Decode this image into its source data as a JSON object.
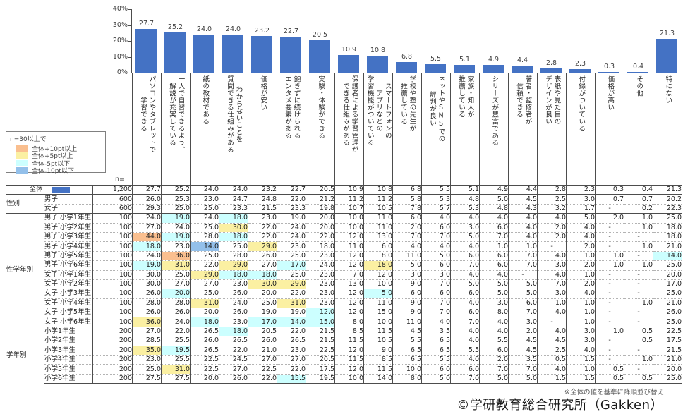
{
  "chart_data": {
    "type": "bar",
    "title": "",
    "unit": "%",
    "bar_color": "#4472C4",
    "grid": false,
    "legend_position": "none",
    "ylim": [
      0,
      40
    ],
    "yticks": [
      "40%",
      "30%",
      "20%",
      "10%",
      "0%"
    ],
    "categories": [
      "パソコンやタブレットで\n学習できる",
      "一人で自習できるよう、\n解説が充実している",
      "紙の教材である",
      "わからないことを\n質問できる仕組みがある",
      "価格が安い",
      "飽きずに続けられる\nエンタメ要素がある",
      "実験・体験ができる",
      "保護者による学習管理が\nできる仕組みがある",
      "スマートフォンの\nアプリなどの\n学習機能がついている",
      "学校や塾の先生が\n推薦している",
      "ネットやSNSでの\n評判が良い",
      "家族・知人が\n推薦している",
      "シリーズが豊富である",
      "著者・監修者が\n信頼できる",
      "表紙や見た目の\nデザインが良い",
      "付録がついている",
      "価格が高い",
      "その他",
      "特にない"
    ],
    "values": [
      27.7,
      25.2,
      24.0,
      24.0,
      23.2,
      22.7,
      20.5,
      10.9,
      10.8,
      6.8,
      5.5,
      5.1,
      4.9,
      4.4,
      2.8,
      2.3,
      0.3,
      0.4,
      21.3
    ]
  },
  "legend": {
    "title": "n=30以上で",
    "items": [
      {
        "label": "全体+10pt以上",
        "color": "#FABF8F"
      },
      {
        "label": "全体+5pt以上",
        "color": "#FBF0A2"
      },
      {
        "label": "全体-5pt以下",
        "color": "#CCFFFF"
      },
      {
        "label": "全体-10pt以下",
        "color": "#93C0EA"
      }
    ]
  },
  "highlight_rules": {
    "plus10": 10,
    "plus5": 5,
    "minus5": -5,
    "minus10": -10
  },
  "table": {
    "n_header": "n=",
    "total_swatch_color": "#4472C4",
    "groups": [
      {
        "name": "",
        "rows": [
          {
            "label": "全体",
            "n": "1,200",
            "values": [
              "27.7",
              "25.2",
              "24.0",
              "24.0",
              "23.2",
              "22.7",
              "20.5",
              "10.9",
              "10.8",
              "6.8",
              "5.5",
              "5.1",
              "4.9",
              "4.4",
              "2.8",
              "2.3",
              "0.3",
              "0.4",
              "21.3"
            ]
          }
        ]
      },
      {
        "name": "性別",
        "rows": [
          {
            "label": "男子",
            "n": "600",
            "values": [
              "26.0",
              "25.3",
              "23.0",
              "24.7",
              "24.8",
              "22.0",
              "21.2",
              "11.2",
              "11.2",
              "5.8",
              "5.3",
              "4.8",
              "5.0",
              "4.5",
              "2.5",
              "3.0",
              "0.7",
              "0.7",
              "20.2"
            ]
          },
          {
            "label": "女子",
            "n": "600",
            "values": [
              "29.3",
              "25.0",
              "25.0",
              "23.3",
              "21.5",
              "23.3",
              "19.8",
              "10.7",
              "10.5",
              "7.8",
              "5.7",
              "5.3",
              "4.8",
              "4.3",
              "3.2",
              "1.7",
              "-",
              "0.2",
              "22.3"
            ]
          }
        ]
      },
      {
        "name": "性学年別",
        "rows": [
          {
            "label": "男子 小学1年生",
            "n": "100",
            "values": [
              "24.0",
              "19.0",
              "24.0",
              "18.0",
              "23.0",
              "19.0",
              "20.0",
              "10.0",
              "11.0",
              "6.0",
              "4.0",
              "4.0",
              "4.0",
              "4.0",
              "4.0",
              "5.0",
              "2.0",
              "1.0",
              "25.0"
            ]
          },
          {
            "label": "男子 小学2年生",
            "n": "100",
            "values": [
              "27.0",
              "24.0",
              "25.0",
              "30.0",
              "22.0",
              "24.0",
              "20.0",
              "10.0",
              "11.0",
              "2.0",
              "6.0",
              "3.0",
              "6.0",
              "4.0",
              "2.0",
              "4.0",
              "-",
              "1.0",
              "18.0"
            ]
          },
          {
            "label": "男子 小学3年生",
            "n": "100",
            "values": [
              "44.0",
              "19.0",
              "28.0",
              "18.0",
              "22.0",
              "24.0",
              "22.0",
              "12.0",
              "13.0",
              "7.0",
              "7.0",
              "5.0",
              "7.0",
              "4.0",
              "2.0",
              "4.0",
              "-",
              "-",
              "18.0"
            ]
          },
          {
            "label": "男子 小学4年生",
            "n": "100",
            "values": [
              "18.0",
              "23.0",
              "14.0",
              "25.0",
              "29.0",
              "23.0",
              "18.0",
              "11.0",
              "6.0",
              "4.0",
              "4.0",
              "4.0",
              "1.0",
              "1.0",
              "-",
              "2.0",
              "-",
              "1.0",
              "21.0"
            ]
          },
          {
            "label": "男子 小学5年生",
            "n": "100",
            "values": [
              "24.0",
              "36.0",
              "25.0",
              "28.0",
              "26.0",
              "25.0",
              "23.0",
              "12.0",
              "8.0",
              "11.0",
              "5.0",
              "6.0",
              "6.0",
              "7.0",
              "4.0",
              "1.0",
              "1.0",
              "-",
              "14.0"
            ]
          },
          {
            "label": "男子 小学6年生",
            "n": "100",
            "values": [
              "19.0",
              "31.0",
              "22.0",
              "29.0",
              "27.0",
              "17.0",
              "24.0",
              "12.0",
              "18.0",
              "5.0",
              "6.0",
              "7.0",
              "6.0",
              "7.0",
              "3.0",
              "2.0",
              "1.0",
              "1.0",
              "25.0"
            ]
          },
          {
            "label": "女子 小学1年生",
            "n": "100",
            "values": [
              "30.0",
              "25.0",
              "29.0",
              "18.0",
              "18.0",
              "25.0",
              "23.0",
              "7.0",
              "12.0",
              "3.0",
              "3.0",
              "4.0",
              "4.0",
              "-",
              "4.0",
              "1.0",
              "-",
              "-",
              "20.0"
            ]
          },
          {
            "label": "女子 小学2年生",
            "n": "100",
            "values": [
              "30.0",
              "27.0",
              "27.0",
              "23.0",
              "30.0",
              "29.0",
              "23.0",
              "13.0",
              "10.0",
              "9.0",
              "7.0",
              "5.0",
              "5.0",
              "5.0",
              "7.0",
              "2.0",
              "-",
              "-",
              "17.0"
            ]
          },
          {
            "label": "女子 小学3年生",
            "n": "100",
            "values": [
              "26.0",
              "20.0",
              "25.0",
              "26.0",
              "20.0",
              "22.0",
              "23.0",
              "12.0",
              "5.0",
              "6.0",
              "6.0",
              "6.0",
              "5.0",
              "5.0",
              "3.0",
              "4.0",
              "-",
              "-",
              "25.0"
            ]
          },
          {
            "label": "女子 小学4年生",
            "n": "100",
            "values": [
              "28.0",
              "28.0",
              "31.0",
              "24.0",
              "25.0",
              "31.0",
              "23.0",
              "12.0",
              "11.0",
              "9.0",
              "7.0",
              "4.0",
              "3.0",
              "6.0",
              "1.0",
              "1.0",
              "-",
              "1.0",
              "21.0"
            ]
          },
          {
            "label": "女子 小学5年生",
            "n": "100",
            "values": [
              "26.0",
              "26.0",
              "20.0",
              "26.0",
              "19.0",
              "19.0",
              "12.0",
              "12.0",
              "15.0",
              "9.0",
              "7.0",
              "6.0",
              "8.0",
              "7.0",
              "4.0",
              "1.0",
              "-",
              "-",
              "26.0"
            ]
          },
          {
            "label": "女子 小学6年生",
            "n": "100",
            "values": [
              "36.0",
              "24.0",
              "18.0",
              "23.0",
              "17.0",
              "14.0",
              "15.0",
              "8.0",
              "10.0",
              "11.0",
              "4.0",
              "7.0",
              "4.0",
              "3.0",
              "-",
              "1.0",
              "-",
              "-",
              "25.0"
            ]
          }
        ]
      },
      {
        "name": "学年別",
        "rows": [
          {
            "label": "小学1年生",
            "n": "200",
            "values": [
              "27.0",
              "22.0",
              "26.5",
              "18.0",
              "20.5",
              "22.0",
              "21.5",
              "8.5",
              "11.5",
              "4.5",
              "3.5",
              "4.0",
              "4.0",
              "2.0",
              "4.0",
              "3.0",
              "1.0",
              "0.5",
              "22.5"
            ]
          },
          {
            "label": "小学2年生",
            "n": "200",
            "values": [
              "28.5",
              "25.5",
              "26.0",
              "26.5",
              "26.0",
              "26.5",
              "21.5",
              "11.5",
              "10.5",
              "5.5",
              "6.5",
              "4.0",
              "5.5",
              "4.5",
              "4.5",
              "3.0",
              "-",
              "0.5",
              "17.5"
            ]
          },
          {
            "label": "小学3年生",
            "n": "200",
            "values": [
              "35.0",
              "19.5",
              "26.5",
              "22.0",
              "21.0",
              "23.0",
              "22.5",
              "12.0",
              "9.0",
              "6.5",
              "6.5",
              "5.5",
              "6.0",
              "4.5",
              "2.5",
              "4.0",
              "-",
              "-",
              "21.5"
            ]
          },
          {
            "label": "小学4年生",
            "n": "200",
            "values": [
              "23.0",
              "25.5",
              "22.5",
              "24.5",
              "27.0",
              "27.0",
              "20.5",
              "11.5",
              "8.5",
              "6.5",
              "5.5",
              "4.0",
              "2.0",
              "3.5",
              "0.5",
              "1.5",
              "-",
              "1.0",
              "21.0"
            ]
          },
          {
            "label": "小学5年生",
            "n": "200",
            "values": [
              "25.0",
              "31.0",
              "22.5",
              "27.0",
              "22.5",
              "22.0",
              "17.5",
              "12.0",
              "11.5",
              "10.0",
              "6.0",
              "6.0",
              "7.0",
              "7.0",
              "4.0",
              "1.0",
              "0.5",
              "-",
              "20.0"
            ]
          },
          {
            "label": "小学6年生",
            "n": "200",
            "values": [
              "27.5",
              "27.5",
              "20.0",
              "26.0",
              "22.0",
              "15.5",
              "19.5",
              "10.0",
              "14.0",
              "8.0",
              "5.0",
              "7.0",
              "5.0",
              "5.0",
              "1.5",
              "1.5",
              "0.5",
              "0.5",
              "25.0"
            ]
          }
        ]
      }
    ]
  },
  "footer": {
    "note": "※全体の値を基準に降順並び替え",
    "copyright": "©学研教育総合研究所（Gakken）"
  }
}
